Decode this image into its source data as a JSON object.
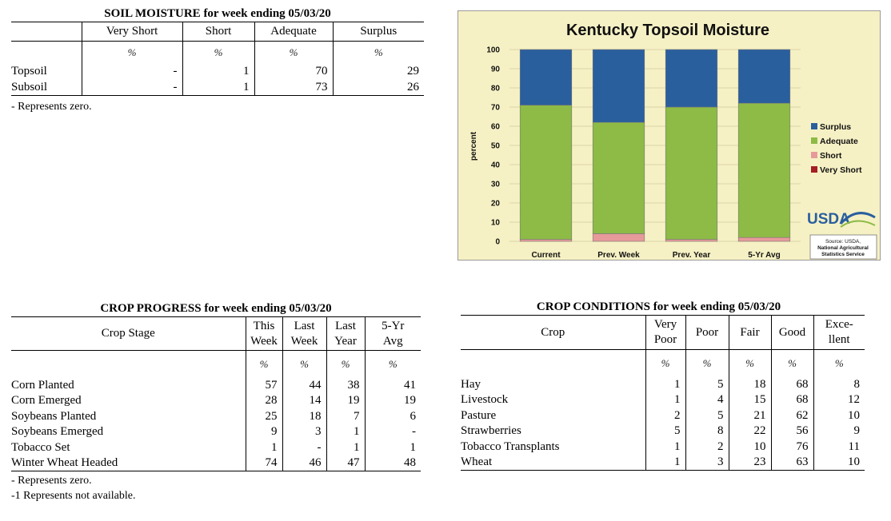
{
  "soil": {
    "title": "SOIL MOISTURE for week ending 05/03/20",
    "columns": [
      "Very Short",
      "Short",
      "Adequate",
      "Surplus"
    ],
    "unit": "%",
    "rows": [
      {
        "label": "Topsoil",
        "values": [
          "-",
          "1",
          "70",
          "29"
        ]
      },
      {
        "label": "Subsoil",
        "values": [
          "-",
          "1",
          "73",
          "26"
        ]
      }
    ],
    "note": "- Represents zero."
  },
  "progress": {
    "title": "CROP PROGRESS for week ending 05/03/20",
    "stage_header": "Crop Stage",
    "columns": [
      {
        "line1": "This",
        "line2": "Week"
      },
      {
        "line1": "Last",
        "line2": "Week"
      },
      {
        "line1": "Last",
        "line2": "Year"
      },
      {
        "line1": "5-Yr",
        "line2": "Avg"
      }
    ],
    "unit": "%",
    "rows": [
      {
        "label": "Corn Planted",
        "values": [
          "57",
          "44",
          "38",
          "41"
        ]
      },
      {
        "label": "Corn Emerged",
        "values": [
          "28",
          "14",
          "19",
          "19"
        ]
      },
      {
        "label": "Soybeans Planted",
        "values": [
          "25",
          "18",
          "7",
          "6"
        ]
      },
      {
        "label": "Soybeans Emerged",
        "values": [
          "9",
          "3",
          "1",
          "-"
        ]
      },
      {
        "label": "Tobacco Set",
        "values": [
          "1",
          "-",
          "1",
          "1"
        ]
      },
      {
        "label": "Winter Wheat Headed",
        "values": [
          "74",
          "46",
          "47",
          "48"
        ]
      }
    ],
    "note1": "- Represents zero.",
    "note2": "-1 Represents not available."
  },
  "conditions": {
    "title": "CROP CONDITIONS for week ending 05/03/20",
    "crop_header": "Crop",
    "columns": [
      {
        "line1": "Very",
        "line2": "Poor"
      },
      {
        "line1": "Poor",
        "line2": ""
      },
      {
        "line1": "Fair",
        "line2": ""
      },
      {
        "line1": "Good",
        "line2": ""
      },
      {
        "line1": "Exce-",
        "line2": "llent"
      }
    ],
    "unit": "%",
    "rows": [
      {
        "label": "Hay",
        "values": [
          "1",
          "5",
          "18",
          "68",
          "8"
        ]
      },
      {
        "label": "Livestock",
        "values": [
          "1",
          "4",
          "15",
          "68",
          "12"
        ]
      },
      {
        "label": "Pasture",
        "values": [
          "2",
          "5",
          "21",
          "62",
          "10"
        ]
      },
      {
        "label": "Strawberries",
        "values": [
          "5",
          "8",
          "22",
          "56",
          "9"
        ]
      },
      {
        "label": "Tobacco Transplants",
        "values": [
          "1",
          "2",
          "10",
          "76",
          "11"
        ]
      },
      {
        "label": "Wheat",
        "values": [
          "1",
          "3",
          "23",
          "63",
          "10"
        ]
      }
    ]
  },
  "chart_data": {
    "type": "bar",
    "stacked": true,
    "title": "Kentucky Topsoil Moisture",
    "ylabel": "percent",
    "ylim": [
      0,
      100
    ],
    "yticks": [
      "100",
      "90",
      "80",
      "70",
      "60",
      "50",
      "40",
      "30",
      "20",
      "10",
      "0"
    ],
    "categories": [
      "Current",
      "Prev. Week",
      "Prev. Year",
      "5-Yr Avg"
    ],
    "series": [
      {
        "name": "Very Short",
        "color": "#a31f24",
        "values": [
          0,
          0,
          0,
          0
        ]
      },
      {
        "name": "Short",
        "color": "#e79a9a",
        "values": [
          1,
          4,
          1,
          2
        ]
      },
      {
        "name": "Adequate",
        "color": "#8dbb46",
        "values": [
          70,
          58,
          69,
          70
        ]
      },
      {
        "name": "Surplus",
        "color": "#2a5f9e",
        "values": [
          29,
          38,
          30,
          28
        ]
      }
    ],
    "legend_order": [
      "Surplus",
      "Adequate",
      "Short",
      "Very Short"
    ],
    "legend_position": "right",
    "grid": true,
    "background": "#f6f1c4",
    "logo_text": "USDA",
    "source_line1": "Source: USDA,",
    "source_line2": "National Agricultural",
    "source_line3": "Statistics Service"
  }
}
